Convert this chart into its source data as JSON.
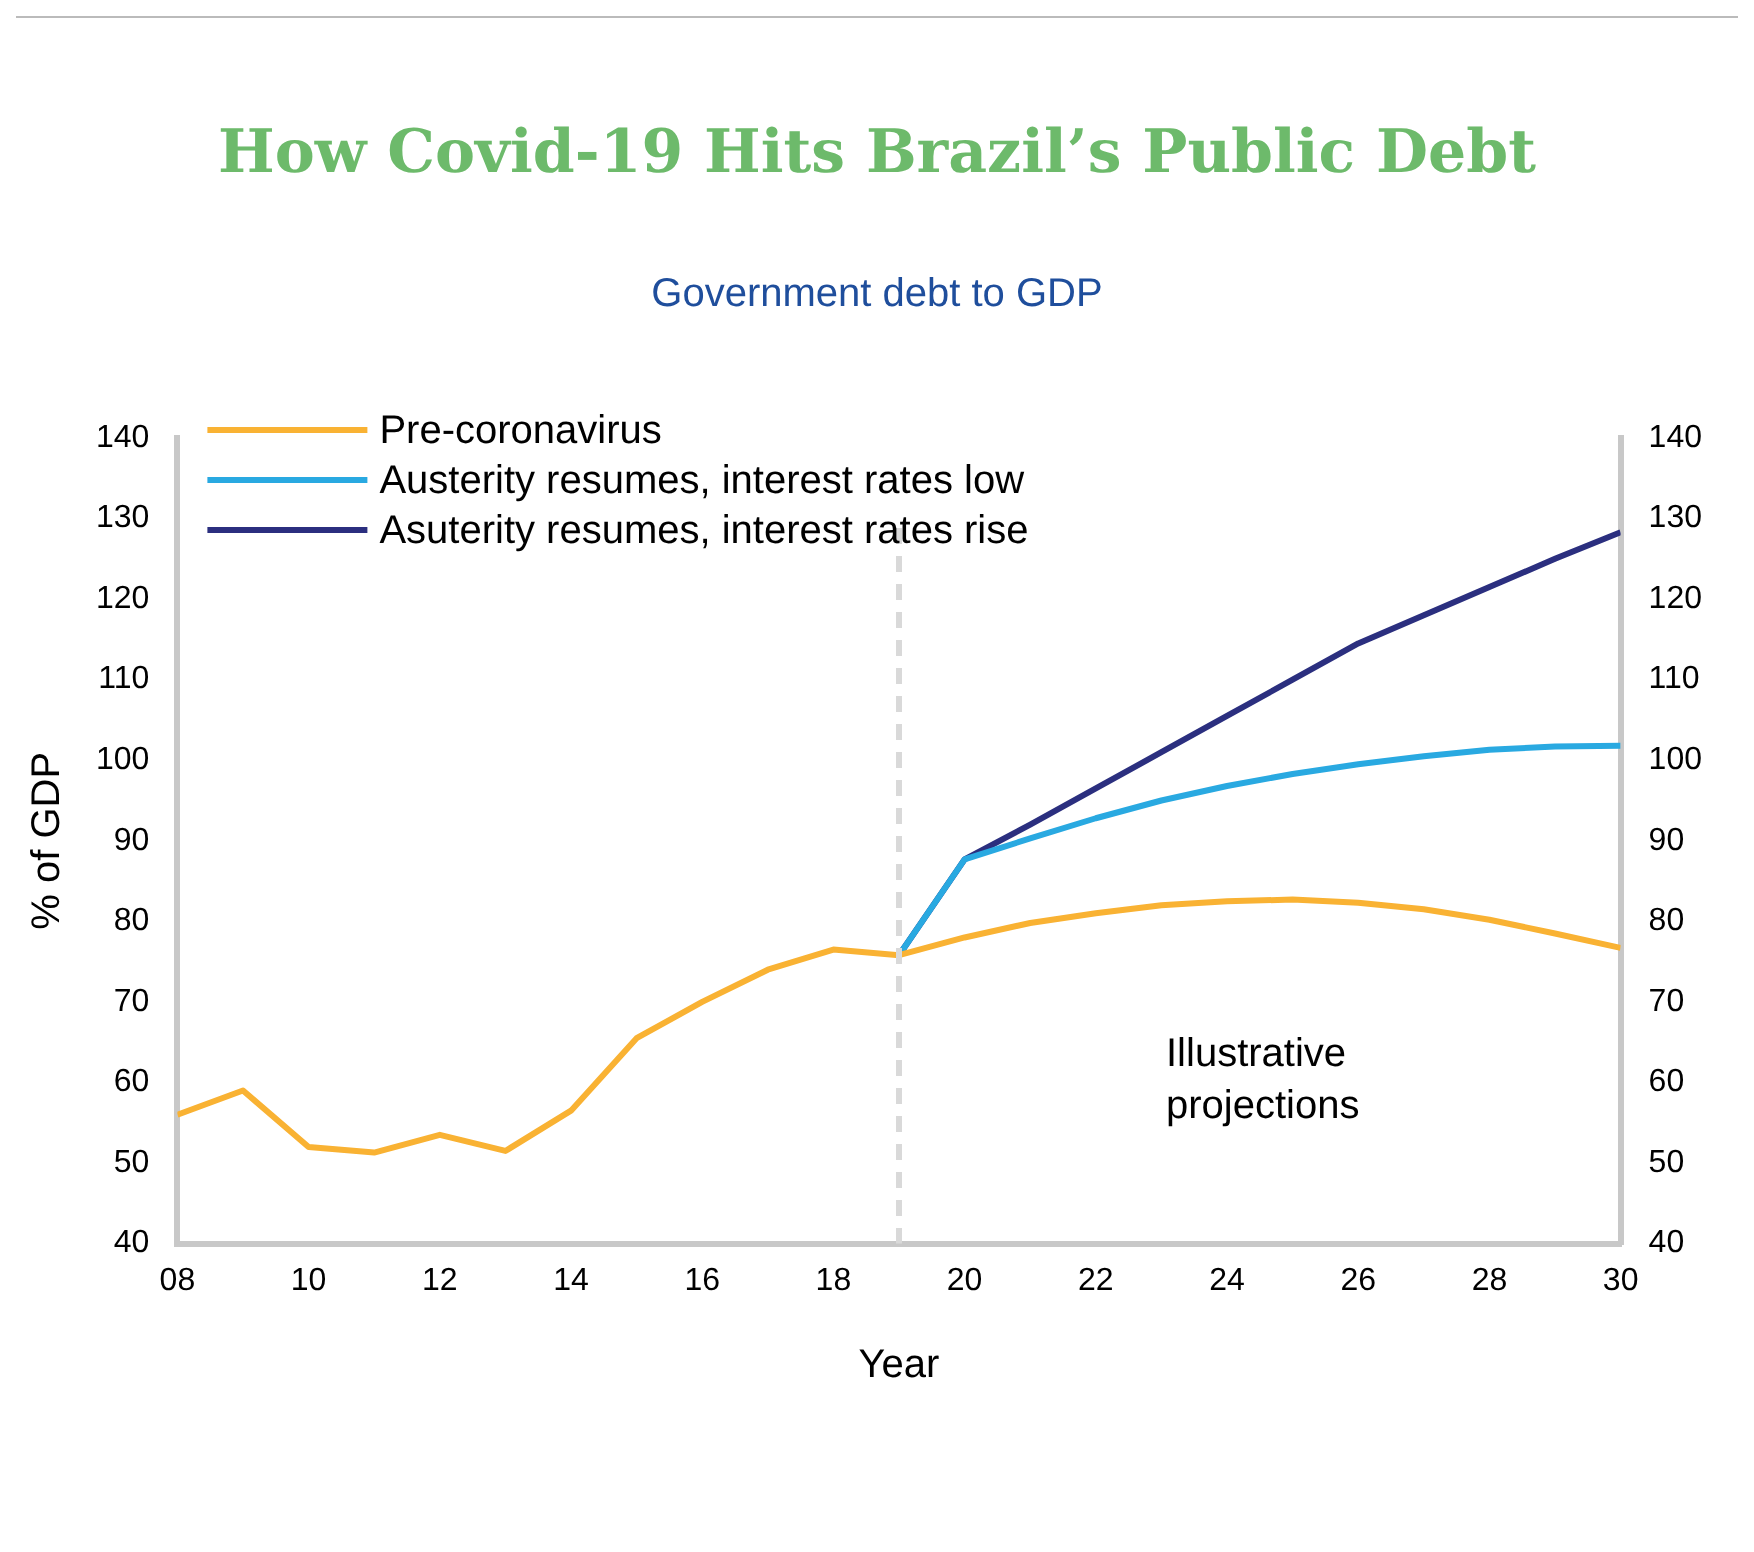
{
  "chart_data": {
    "type": "line",
    "title": "How Covid-19 Hits Brazil’s Public Debt",
    "subtitle": "Government debt to GDP",
    "xlabel": "Year",
    "ylabel": "% of GDP",
    "series": [
      {
        "name": "Pre-coronavirus",
        "color": "#f9b233",
        "x": [
          2008,
          2009,
          2010,
          2011,
          2012,
          2013,
          2014,
          2015,
          2016,
          2017,
          2018,
          2019,
          2020,
          2021,
          2022,
          2023,
          2024,
          2025,
          2026,
          2027,
          2028,
          2029,
          2030
        ],
        "values": [
          56,
          59,
          52,
          51.3,
          53.5,
          51.5,
          56.5,
          65.5,
          70,
          74,
          76.5,
          75.8,
          78,
          79.8,
          81,
          82,
          82.5,
          82.7,
          82.3,
          81.5,
          80.2,
          78.5,
          76.7
        ]
      },
      {
        "name": "Austerity resumes, interest rates low",
        "color": "#29a9e1",
        "x": [
          2019,
          2020,
          2021,
          2022,
          2023,
          2024,
          2025,
          2026,
          2027,
          2028,
          2029,
          2030
        ],
        "values": [
          75.8,
          87.7,
          90.3,
          92.8,
          95,
          96.8,
          98.3,
          99.5,
          100.5,
          101.3,
          101.7,
          101.8
        ]
      },
      {
        "name": "Asuterity resumes, interest rates rise",
        "color": "#2b2f7f",
        "x": [
          2019,
          2020,
          2021,
          2022,
          2023,
          2024,
          2025,
          2026,
          2027,
          2028,
          2029,
          2030
        ],
        "values": [
          75.8,
          87.7,
          92,
          96.5,
          101,
          105.5,
          110,
          114.5,
          118,
          121.5,
          125,
          128.3
        ]
      }
    ],
    "xlim": [
      2008,
      2030
    ],
    "xticks": [
      {
        "value": 2008,
        "label": "08"
      },
      {
        "value": 2010,
        "label": "10"
      },
      {
        "value": 2012,
        "label": "12"
      },
      {
        "value": 2014,
        "label": "14"
      },
      {
        "value": 2016,
        "label": "16"
      },
      {
        "value": 2018,
        "label": "18"
      },
      {
        "value": 2020,
        "label": "20"
      },
      {
        "value": 2022,
        "label": "22"
      },
      {
        "value": 2024,
        "label": "24"
      },
      {
        "value": 2026,
        "label": "26"
      },
      {
        "value": 2028,
        "label": "28"
      },
      {
        "value": 2030,
        "label": "30"
      }
    ],
    "ylim": [
      40,
      140
    ],
    "yticks": [
      40,
      50,
      60,
      70,
      80,
      90,
      100,
      110,
      120,
      130,
      140
    ],
    "y2lim": [
      40,
      140
    ],
    "y2ticks": [
      40,
      50,
      60,
      70,
      80,
      90,
      100,
      110,
      120,
      130,
      140
    ],
    "ref_lines": [
      {
        "axis": "x",
        "value": 2019,
        "color": "#d9d9d9",
        "line_style": "dashed"
      }
    ],
    "annotations": [
      "Illustrative projections"
    ],
    "legend": "top left",
    "grid": false,
    "marker": "none",
    "line_style": "solid"
  }
}
